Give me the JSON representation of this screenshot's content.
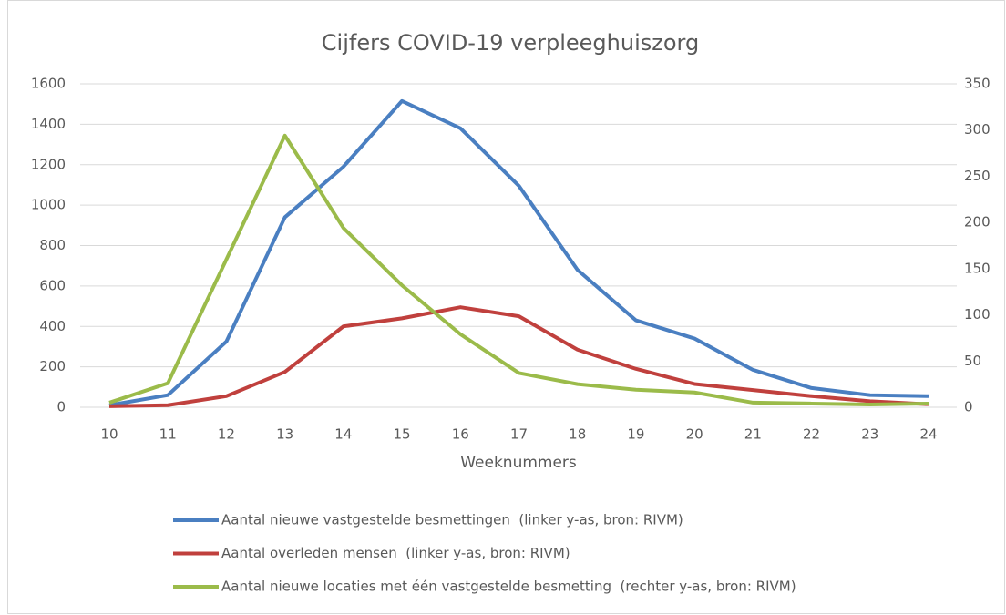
{
  "chart_data": {
    "type": "line",
    "title": "Cijfers COVID-19 verpleeghuiszorg",
    "x_label": "Weeknummers",
    "x": [
      10,
      11,
      12,
      13,
      14,
      15,
      16,
      17,
      18,
      19,
      20,
      21,
      22,
      23,
      24
    ],
    "xlim": [
      10,
      24
    ],
    "xticks": [
      10,
      11,
      12,
      13,
      14,
      15,
      16,
      17,
      18,
      19,
      20,
      21,
      22,
      23,
      24
    ],
    "ylim": [
      0,
      1600
    ],
    "yticks": [
      0,
      200,
      400,
      600,
      800,
      1000,
      1200,
      1400,
      1600
    ],
    "y2lim": [
      0,
      350
    ],
    "y2ticks": [
      0,
      50,
      100,
      150,
      200,
      250,
      300,
      350
    ],
    "grid": true,
    "legend": "bottom",
    "series": [
      {
        "name": "Aantal nieuwe vastgestelde besmettingen  (linker y-as, bron: RIVM)",
        "color": "#4a7fc1",
        "values": [
          10,
          60,
          325,
          940,
          1190,
          1515,
          1380,
          1095,
          680,
          430,
          340,
          185,
          95,
          60,
          55
        ]
      },
      {
        "name": "Aantal overleden mensen  (linker y-as, bron: RIVM)",
        "color": "#c0403d",
        "values": [
          5,
          10,
          55,
          175,
          400,
          440,
          495,
          450,
          285,
          190,
          115,
          85,
          55,
          30,
          15
        ]
      },
      {
        "name": "Aantal nieuwe locaties met één vastgestelde besmetting  (rechter y-as, bron: RIVM)",
        "color": "#9bbb4a",
        "axis": "y2",
        "values": [
          5,
          26,
          160,
          294,
          194,
          132,
          79,
          37,
          25,
          19,
          16,
          5,
          4,
          3,
          4
        ]
      }
    ]
  }
}
